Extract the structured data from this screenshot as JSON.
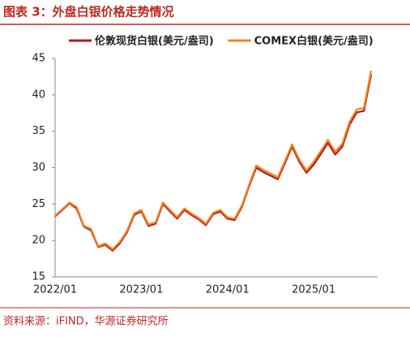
{
  "chart_data": {
    "type": "line",
    "title": "图表 3：外盘白银价格走势情况",
    "source": "资料来源：iFIND，华源证券研究所",
    "categories": [
      "2022/01",
      null,
      null,
      null,
      null,
      null,
      null,
      null,
      null,
      null,
      null,
      null,
      "2023/01",
      null,
      null,
      null,
      null,
      null,
      null,
      null,
      null,
      null,
      null,
      null,
      "2024/01",
      null,
      null,
      null,
      null,
      null,
      null,
      null,
      null,
      null,
      null,
      null,
      "2025/01",
      null,
      null,
      null,
      null,
      null,
      null,
      null,
      null
    ],
    "series": [
      {
        "name": "伦敦现货白银(美元/盎司)",
        "color": "#b8171b",
        "values": [
          23.3,
          24.2,
          25.1,
          24.4,
          21.9,
          21.4,
          19.1,
          19.4,
          18.6,
          19.6,
          21.1,
          23.5,
          24.0,
          22.0,
          22.3,
          25.0,
          24.0,
          23.0,
          24.2,
          23.5,
          22.9,
          22.1,
          23.6,
          24.0,
          23.0,
          22.8,
          24.6,
          27.4,
          30.0,
          29.4,
          28.9,
          28.4,
          30.6,
          32.9,
          30.8,
          29.3,
          30.4,
          31.9,
          33.4,
          31.8,
          32.9,
          35.9,
          37.6,
          37.8,
          42.8
        ]
      },
      {
        "name": "COMEX白银(美元/盎司)",
        "color": "#f0821e",
        "values": [
          23.4,
          24.3,
          25.2,
          24.6,
          22.0,
          21.6,
          19.2,
          19.6,
          18.8,
          19.8,
          21.3,
          23.7,
          24.2,
          22.2,
          22.5,
          25.2,
          24.2,
          23.2,
          24.4,
          23.7,
          23.1,
          22.3,
          23.8,
          24.2,
          23.2,
          23.0,
          24.8,
          27.6,
          30.3,
          29.7,
          29.2,
          28.7,
          30.9,
          33.2,
          31.1,
          29.6,
          30.8,
          32.3,
          33.8,
          32.2,
          33.3,
          36.3,
          38.0,
          38.2,
          43.3
        ]
      }
    ],
    "ylim": [
      15,
      45
    ],
    "yticks": [
      15,
      20,
      25,
      30,
      35,
      40,
      45
    ],
    "legend": "top"
  }
}
